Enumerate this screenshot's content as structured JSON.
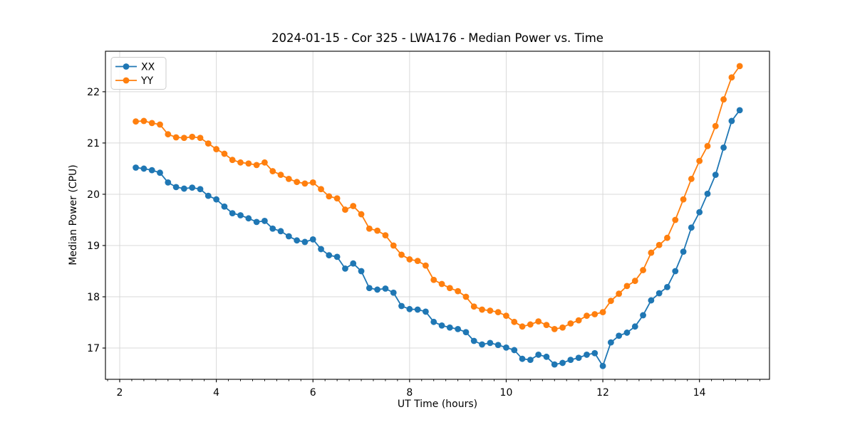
{
  "chart_data": {
    "type": "line",
    "title": "2024-01-15 - Cor 325 - LWA176 - Median Power vs. Time",
    "xlabel": "UT Time (hours)",
    "ylabel": "Median Power (CPU)",
    "xlim": [
      1.705,
      15.45
    ],
    "ylim": [
      16.39,
      22.79
    ],
    "xticks": [
      2,
      4,
      6,
      8,
      10,
      12,
      14
    ],
    "xtick_labels": [
      "2",
      "4",
      "6",
      "8",
      "10",
      "12",
      "14"
    ],
    "x_minor_tick_step": 0.25,
    "yticks": [
      17,
      18,
      19,
      20,
      21,
      22
    ],
    "ytick_labels": [
      "17",
      "18",
      "19",
      "20",
      "21",
      "22"
    ],
    "grid": true,
    "grid_color": "#d9d9d9",
    "legend_position": "upper left",
    "x": [
      2.333,
      2.5,
      2.667,
      2.833,
      3.0,
      3.167,
      3.333,
      3.5,
      3.667,
      3.833,
      4.0,
      4.167,
      4.333,
      4.5,
      4.667,
      4.833,
      5.0,
      5.167,
      5.333,
      5.5,
      5.667,
      5.833,
      6.0,
      6.167,
      6.333,
      6.5,
      6.667,
      6.833,
      7.0,
      7.167,
      7.333,
      7.5,
      7.667,
      7.833,
      8.0,
      8.167,
      8.333,
      8.5,
      8.667,
      8.833,
      9.0,
      9.167,
      9.333,
      9.5,
      9.667,
      9.833,
      10.0,
      10.167,
      10.333,
      10.5,
      10.667,
      10.833,
      11.0,
      11.167,
      11.333,
      11.5,
      11.667,
      11.833,
      12.0,
      12.167,
      12.333,
      12.5,
      12.667,
      12.833,
      13.0,
      13.167,
      13.333,
      13.5,
      13.667,
      13.833,
      14.0,
      14.167,
      14.333,
      14.5,
      14.667,
      14.833
    ],
    "series": [
      {
        "name": "XX",
        "color": "#1f77b4",
        "marker": "circle",
        "values": [
          20.52,
          20.5,
          20.47,
          20.42,
          20.23,
          20.14,
          20.11,
          20.13,
          20.1,
          19.97,
          19.9,
          19.76,
          19.63,
          19.59,
          19.53,
          19.46,
          19.48,
          19.33,
          19.28,
          19.18,
          19.1,
          19.07,
          19.12,
          18.93,
          18.81,
          18.78,
          18.55,
          18.65,
          18.5,
          18.17,
          18.14,
          18.16,
          18.08,
          17.82,
          17.76,
          17.75,
          17.71,
          17.51,
          17.44,
          17.4,
          17.37,
          17.31,
          17.14,
          17.07,
          17.1,
          17.06,
          17.01,
          16.96,
          16.79,
          16.77,
          16.87,
          16.83,
          16.68,
          16.71,
          16.77,
          16.81,
          16.87,
          16.9,
          16.65,
          17.11,
          17.24,
          17.3,
          17.42,
          17.64,
          17.93,
          18.07,
          18.19,
          18.5,
          18.88,
          19.35,
          19.65,
          20.01,
          20.38,
          20.91,
          21.43,
          21.64
        ]
      },
      {
        "name": "YY",
        "color": "#ff7f0e",
        "marker": "circle",
        "values": [
          21.42,
          21.43,
          21.39,
          21.36,
          21.17,
          21.11,
          21.1,
          21.12,
          21.1,
          20.99,
          20.88,
          20.79,
          20.67,
          20.62,
          20.6,
          20.57,
          20.62,
          20.45,
          20.38,
          20.3,
          20.24,
          20.21,
          20.23,
          20.1,
          19.96,
          19.92,
          19.7,
          19.77,
          19.61,
          19.33,
          19.29,
          19.2,
          19.0,
          18.82,
          18.73,
          18.7,
          18.61,
          18.33,
          18.25,
          18.17,
          18.11,
          18.0,
          17.81,
          17.75,
          17.73,
          17.7,
          17.63,
          17.51,
          17.42,
          17.46,
          17.52,
          17.45,
          17.37,
          17.4,
          17.48,
          17.54,
          17.63,
          17.66,
          17.7,
          17.92,
          18.06,
          18.21,
          18.31,
          18.52,
          18.86,
          19.01,
          19.15,
          19.5,
          19.9,
          20.3,
          20.65,
          20.94,
          21.33,
          21.85,
          22.28,
          22.5
        ]
      }
    ]
  }
}
